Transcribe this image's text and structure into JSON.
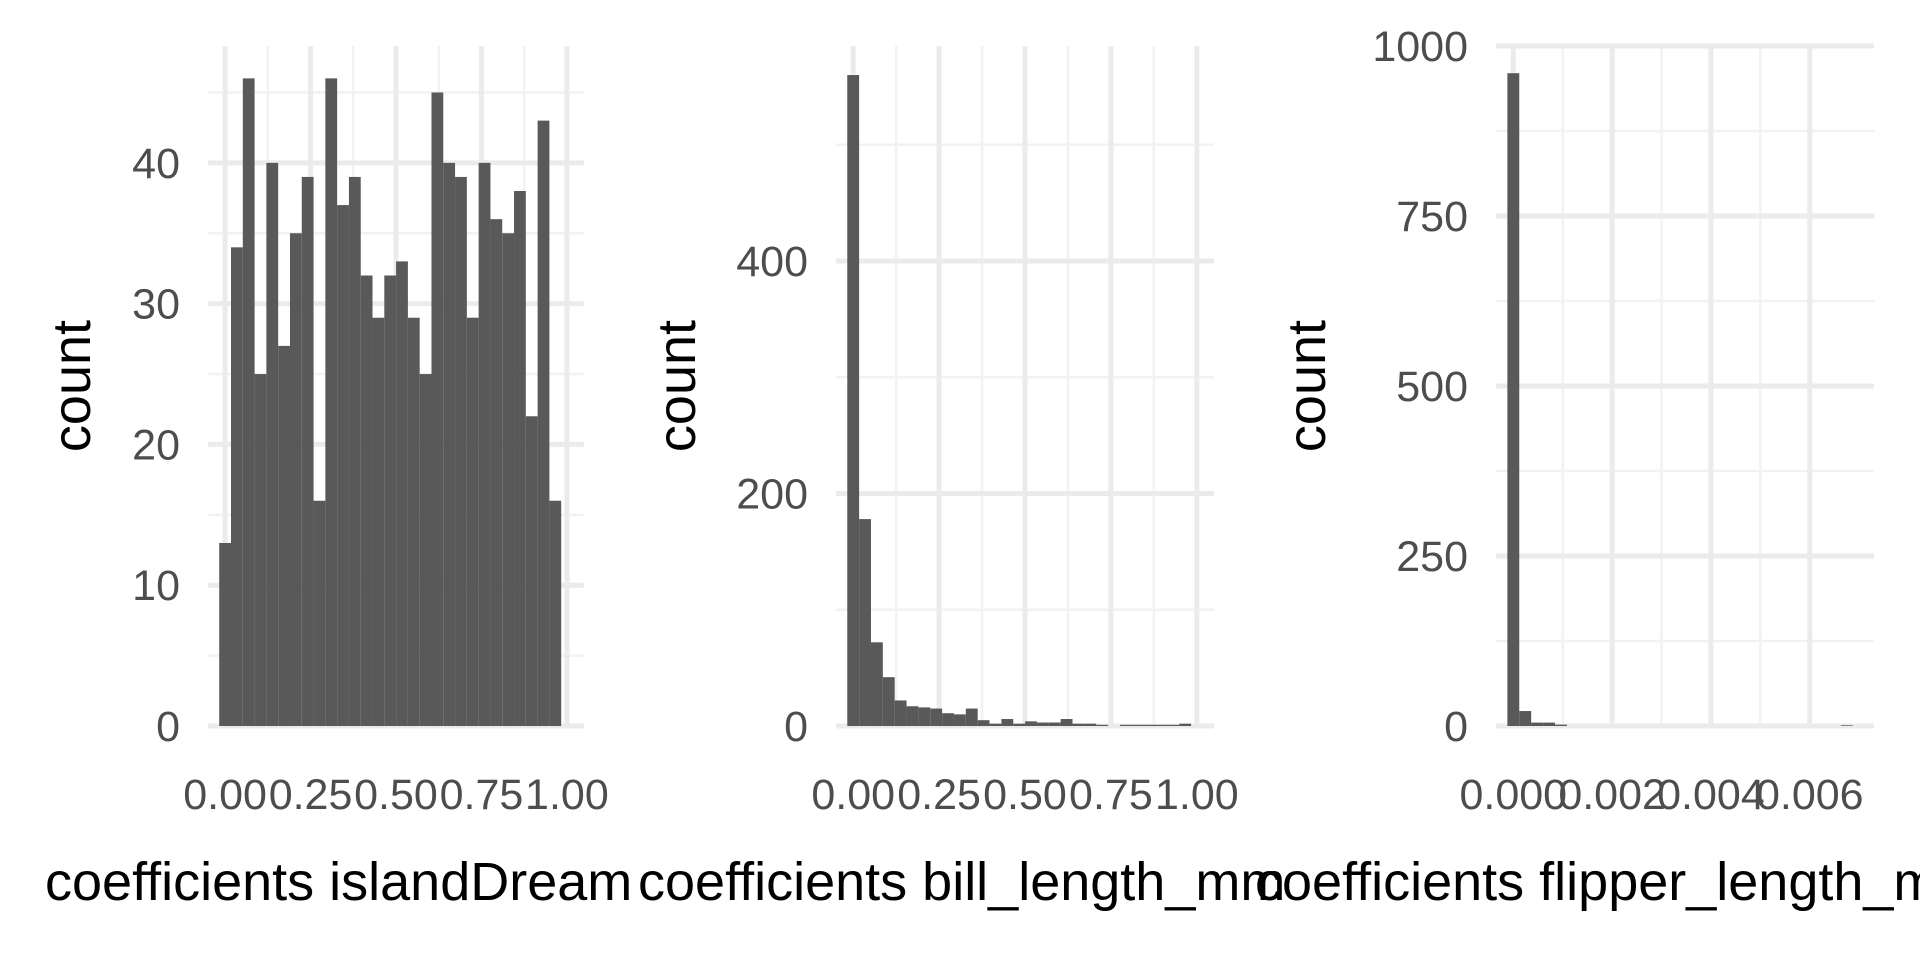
{
  "colors": {
    "bar": "#595959",
    "grid_major": "#ebebeb",
    "grid_minor": "#f2f2f2",
    "tick_text": "#4d4d4d",
    "title_text": "#000000",
    "background": "#ffffff"
  },
  "chart_data": [
    {
      "type": "bar",
      "title": "",
      "xlabel": "coefficients islandDream",
      "ylabel": "count",
      "xlim": [
        -0.05,
        1.05
      ],
      "ylim": [
        0,
        48.3
      ],
      "bin_width": 0.0345,
      "bin_start": -0.0172,
      "values": [
        13,
        34,
        46,
        25,
        40,
        27,
        35,
        39,
        16,
        46,
        37,
        39,
        32,
        29,
        32,
        33,
        29,
        25,
        45,
        40,
        39,
        29,
        40,
        36,
        35,
        38,
        22,
        43,
        16
      ],
      "x_ticks": [
        "0.00",
        "0.25",
        "0.50",
        "0.75",
        "1.00"
      ],
      "x_tick_values": [
        0,
        0.25,
        0.5,
        0.75,
        1.0
      ],
      "y_ticks": [
        "0",
        "10",
        "20",
        "30",
        "40"
      ],
      "y_tick_values": [
        0,
        10,
        20,
        30,
        40
      ],
      "grid": true
    },
    {
      "type": "bar",
      "title": "",
      "xlabel": "coefficients bill_length_mm",
      "ylabel": "count",
      "xlim": [
        -0.05,
        1.05
      ],
      "ylim": [
        0,
        585
      ],
      "bin_width": 0.0345,
      "bin_start": -0.0172,
      "values": [
        560,
        178,
        72,
        42,
        22,
        17,
        16,
        15,
        11,
        10,
        15,
        5,
        2,
        6,
        2,
        4,
        3,
        3,
        6,
        2,
        2,
        1,
        0,
        1,
        1,
        1,
        1,
        1,
        2
      ],
      "x_ticks": [
        "0.00",
        "0.25",
        "0.50",
        "0.75",
        "1.00"
      ],
      "x_tick_values": [
        0,
        0.25,
        0.5,
        0.75,
        1.0
      ],
      "y_ticks": [
        "0",
        "200",
        "400"
      ],
      "y_tick_values": [
        0,
        200,
        400
      ],
      "grid": true
    },
    {
      "type": "bar",
      "title": "",
      "xlabel": "coefficients flipper_length_mm",
      "ylabel": "count",
      "xlim": [
        -0.00035,
        0.0073
      ],
      "ylim": [
        0,
        1000
      ],
      "bin_width": 0.000241,
      "bin_start": -0.00012,
      "values": [
        960,
        22,
        5,
        5,
        2,
        0,
        0,
        0,
        0,
        0,
        0,
        0,
        0,
        0,
        0,
        0,
        0,
        0,
        0,
        0,
        0,
        0,
        0,
        0,
        0,
        0,
        0,
        0,
        1
      ],
      "x_ticks": [
        "0.000",
        "0.002",
        "0.004",
        "0.006"
      ],
      "x_tick_values": [
        0,
        0.002,
        0.004,
        0.006
      ],
      "y_ticks": [
        "0",
        "250",
        "500",
        "750",
        "1000"
      ],
      "y_tick_values": [
        0,
        250,
        500,
        750,
        1000
      ],
      "grid": true
    }
  ]
}
